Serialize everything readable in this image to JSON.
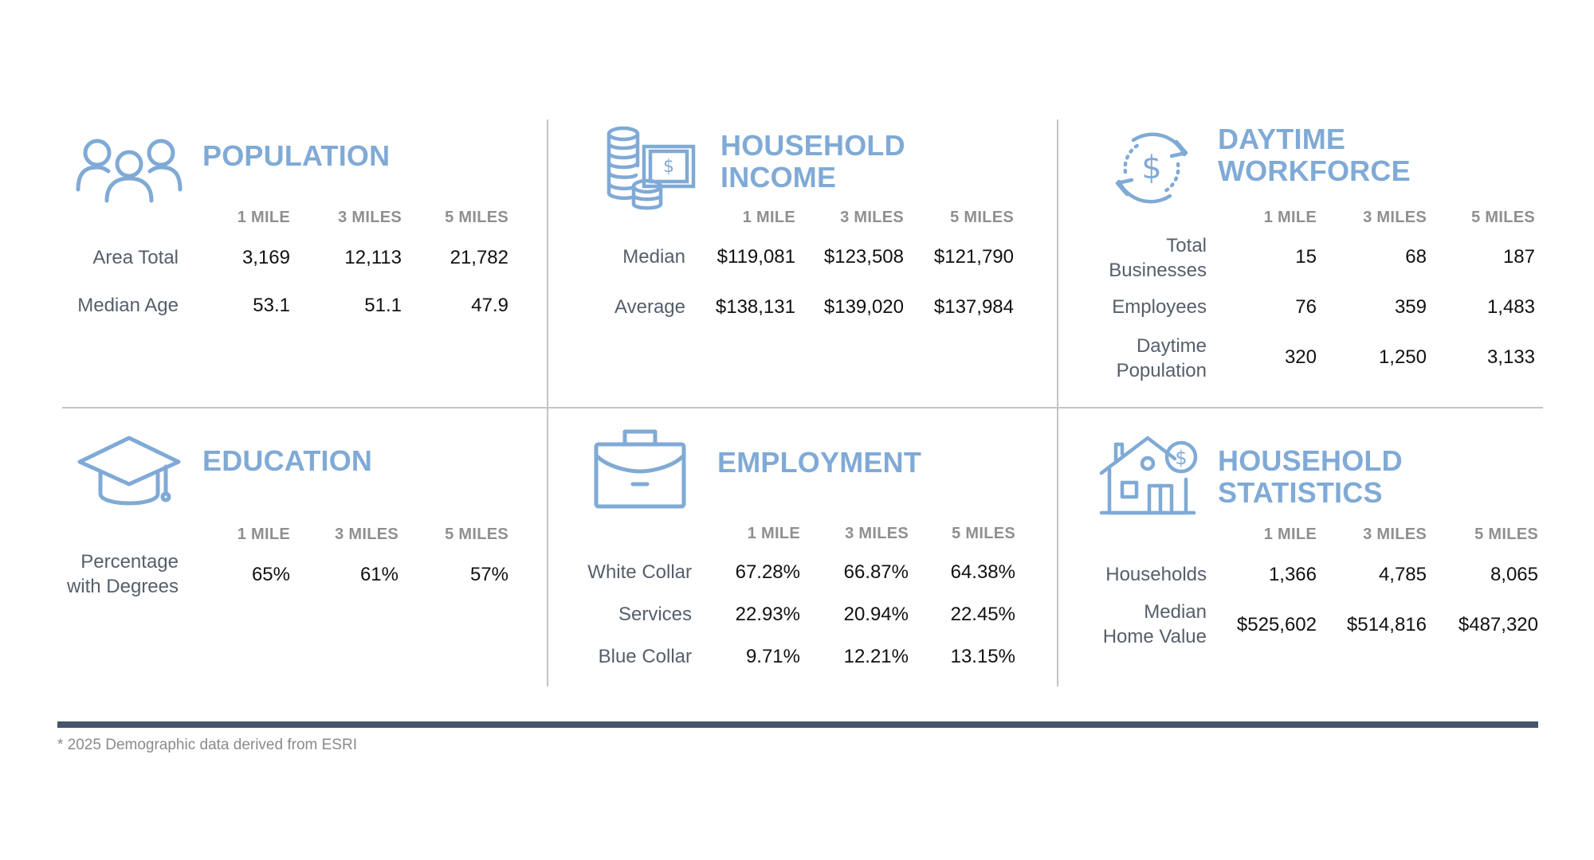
{
  "columns": [
    "1 MILE",
    "3 MILES",
    "5 MILES"
  ],
  "icon_color": "#80aad6",
  "footnote": "* 2025 Demographic data derived from ESRI",
  "population": {
    "title": "POPULATION",
    "icon": "people-icon",
    "rows": [
      {
        "label": "Area Total",
        "values": [
          "3,169",
          "12,113",
          "21,782"
        ]
      },
      {
        "label": "Median Age",
        "values": [
          "53.1",
          "51.1",
          "47.9"
        ]
      }
    ]
  },
  "household_income": {
    "title_line1": "HOUSEHOLD",
    "title_line2": "INCOME",
    "icon": "money-coins-icon",
    "rows": [
      {
        "label": "Median",
        "values": [
          "$119,081",
          "$123,508",
          "$121,790"
        ]
      },
      {
        "label": "Average",
        "values": [
          "$138,131",
          "$139,020",
          "$137,984"
        ]
      }
    ]
  },
  "daytime_workforce": {
    "title_line1": "DAYTIME",
    "title_line2": "WORKFORCE",
    "icon": "dollar-cycle-icon",
    "rows": [
      {
        "label": "Total\nBusinesses",
        "values": [
          "15",
          "68",
          "187"
        ]
      },
      {
        "label": "Employees",
        "values": [
          "76",
          "359",
          "1,483"
        ]
      },
      {
        "label": "Daytime\nPopulation",
        "values": [
          "320",
          "1,250",
          "3,133"
        ]
      }
    ]
  },
  "education": {
    "title": "EDUCATION",
    "icon": "graduation-cap-icon",
    "rows": [
      {
        "label": "Percentage\nwith Degrees",
        "values": [
          "65%",
          "61%",
          "57%"
        ]
      }
    ]
  },
  "employment": {
    "title": "EMPLOYMENT",
    "icon": "briefcase-icon",
    "rows": [
      {
        "label": "White Collar",
        "values": [
          "67.28%",
          "66.87%",
          "64.38%"
        ]
      },
      {
        "label": "Services",
        "values": [
          "22.93%",
          "20.94%",
          "22.45%"
        ]
      },
      {
        "label": "Blue Collar",
        "values": [
          "9.71%",
          "12.21%",
          "13.15%"
        ]
      }
    ]
  },
  "household_statistics": {
    "title_line1": "HOUSEHOLD",
    "title_line2": "STATISTICS",
    "icon": "house-dollar-icon",
    "rows": [
      {
        "label": "Households",
        "values": [
          "1,366",
          "4,785",
          "8,065"
        ]
      },
      {
        "label": "Median\nHome Value",
        "values": [
          "$525,602",
          "$514,816",
          "$487,320"
        ]
      }
    ]
  }
}
